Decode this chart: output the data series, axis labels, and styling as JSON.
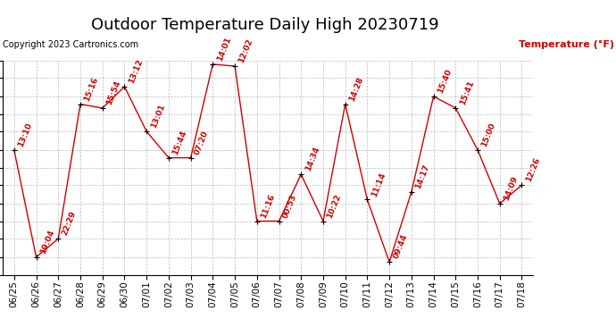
{
  "title": "Outdoor Temperature Daily High 20230719",
  "copyright": "Copyright 2023 Cartronics.com",
  "ylabel": "Temperature (°F)",
  "background_color": "#ffffff",
  "line_color": "#cc0000",
  "marker_color": "#000000",
  "label_color": "#cc0000",
  "ylabel_color": "#cc0000",
  "grid_color": "#bbbbbb",
  "ylim": [
    72.0,
    94.0
  ],
  "yticks": [
    72.0,
    73.8,
    75.7,
    77.5,
    79.3,
    81.2,
    83.0,
    84.8,
    86.7,
    88.5,
    90.3,
    92.2,
    94.0
  ],
  "dates": [
    "06/25",
    "06/26",
    "06/27",
    "06/28",
    "06/29",
    "06/30",
    "07/01",
    "07/02",
    "07/03",
    "07/04",
    "07/05",
    "07/06",
    "07/07",
    "07/08",
    "07/09",
    "07/10",
    "07/11",
    "07/12",
    "07/13",
    "07/14",
    "07/15",
    "07/16",
    "07/17",
    "07/18"
  ],
  "temps": [
    84.8,
    73.8,
    75.7,
    89.5,
    89.1,
    91.3,
    86.7,
    84.0,
    84.0,
    93.6,
    93.4,
    77.5,
    77.5,
    82.3,
    77.5,
    89.5,
    79.7,
    73.3,
    80.5,
    90.3,
    89.1,
    84.8,
    79.3,
    81.2
  ],
  "time_labels": [
    "13:10",
    "19:04",
    "22:29",
    "15:16",
    "15:54",
    "13:12",
    "13:01",
    "15:44",
    "07:20",
    "14:01",
    "12:02",
    "11:16",
    "00:53",
    "14:34",
    "10:22",
    "14:28",
    "11:14",
    "09:44",
    "14:17",
    "15:40",
    "15:41",
    "15:00",
    "14:09",
    "12:26"
  ],
  "title_fontsize": 13,
  "label_fontsize": 6.5,
  "tick_fontsize": 7.5,
  "copyright_fontsize": 7
}
